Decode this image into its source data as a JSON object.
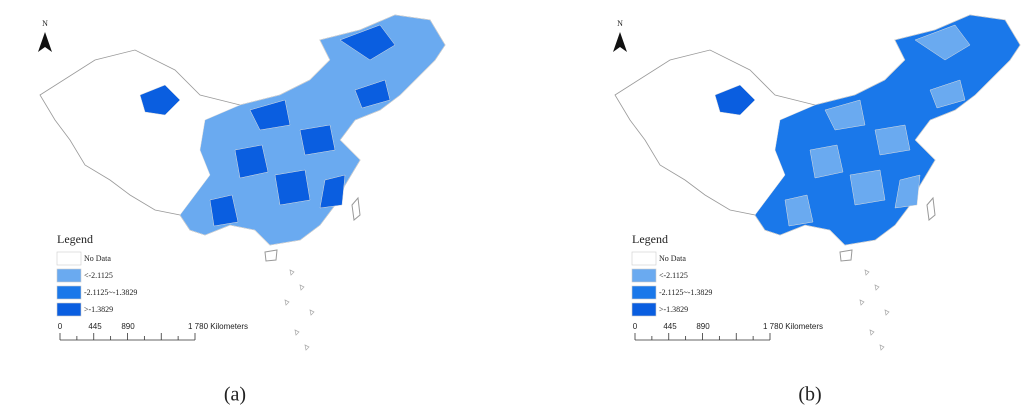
{
  "panels": [
    {
      "north": "N",
      "legend": {
        "title": "Legend",
        "items": [
          {
            "label": "No Data",
            "color": "#ffffff"
          },
          {
            "label": "<-2.1125",
            "color": "#6aaaf0"
          },
          {
            "label": "-2.1125~-1.3829",
            "color": "#1a78ea"
          },
          {
            "label": ">-1.3829",
            "color": "#0a5ee0"
          }
        ]
      },
      "scale": [
        "0",
        "445",
        "890",
        "1 780 Kilometers"
      ],
      "caption": "(a)"
    },
    {
      "north": "N",
      "legend": {
        "title": "Legend",
        "items": [
          {
            "label": "No Data",
            "color": "#ffffff"
          },
          {
            "label": "<-2.1125",
            "color": "#6aaaf0"
          },
          {
            "label": "-2.1125~-1.3829",
            "color": "#1a78ea"
          },
          {
            "label": ">-1.3829",
            "color": "#0a5ee0"
          }
        ]
      },
      "scale": [
        "0",
        "445",
        "890",
        "1 780 Kilometers"
      ],
      "caption": "(b)"
    }
  ]
}
